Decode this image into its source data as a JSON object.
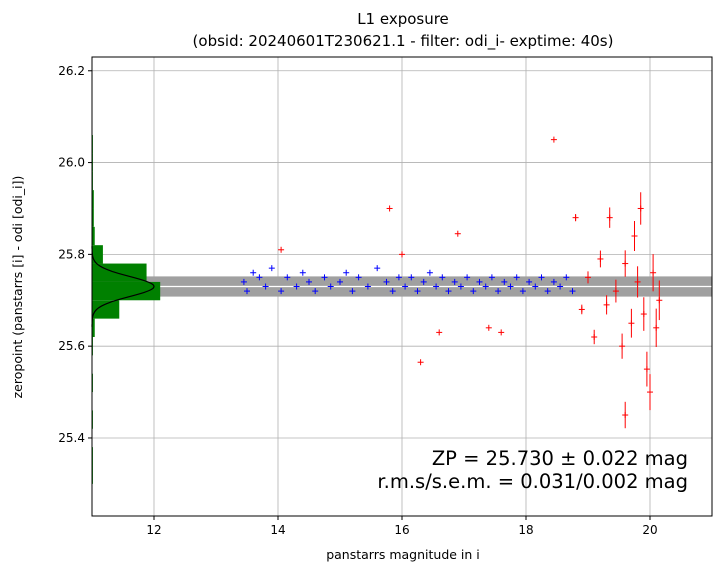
{
  "chart_data": {
    "type": "scatter",
    "title": "L1 exposure",
    "subtitle": "(obsid: 20240601T230621.1 - filter: odi_i- exptime: 40s)",
    "xlabel": "panstarrs magnitude in i",
    "ylabel": "zeropoint (panstarrs [i] - odi [odi_i])",
    "xlim": [
      11.0,
      21.0
    ],
    "ylim": [
      25.23,
      26.23
    ],
    "xticks": [
      12,
      14,
      16,
      18,
      20
    ],
    "yticks": [
      25.4,
      25.6,
      25.8,
      26.0,
      26.2
    ],
    "xtick_labels": [
      "12",
      "14",
      "16",
      "18",
      "20"
    ],
    "ytick_labels": [
      "25.4",
      "25.6",
      "25.8",
      "26.0",
      "26.2"
    ],
    "grid": true,
    "zeropoint": 25.73,
    "zeropoint_sigma": 0.022,
    "annotation_line1": "ZP = 25.730 ± 0.022 mag",
    "annotation_line2": "r.m.s/s.e.m. = 0.031/0.002 mag",
    "annotation_position": "bottom-right",
    "band_color": "#a0a0a0",
    "center_line_color": "#ffffff",
    "colors": {
      "used": "#0000ff",
      "rejected": "#ff0000",
      "histogram": "#008000",
      "gaussian": "#000000"
    },
    "series": [
      {
        "role": "used",
        "points": [
          [
            13.45,
            25.74
          ],
          [
            13.5,
            25.72
          ],
          [
            13.6,
            25.76
          ],
          [
            13.7,
            25.75
          ],
          [
            13.8,
            25.73
          ],
          [
            13.9,
            25.77
          ],
          [
            14.05,
            25.72
          ],
          [
            14.15,
            25.75
          ],
          [
            14.3,
            25.73
          ],
          [
            14.4,
            25.76
          ],
          [
            14.5,
            25.74
          ],
          [
            14.6,
            25.72
          ],
          [
            14.75,
            25.75
          ],
          [
            14.85,
            25.73
          ],
          [
            15.0,
            25.74
          ],
          [
            15.1,
            25.76
          ],
          [
            15.2,
            25.72
          ],
          [
            15.3,
            25.75
          ],
          [
            15.45,
            25.73
          ],
          [
            15.6,
            25.77
          ],
          [
            15.75,
            25.74
          ],
          [
            15.85,
            25.72
          ],
          [
            15.95,
            25.75
          ],
          [
            16.05,
            25.73
          ],
          [
            16.15,
            25.75
          ],
          [
            16.25,
            25.72
          ],
          [
            16.35,
            25.74
          ],
          [
            16.45,
            25.76
          ],
          [
            16.55,
            25.73
          ],
          [
            16.65,
            25.75
          ],
          [
            16.75,
            25.72
          ],
          [
            16.85,
            25.74
          ],
          [
            16.95,
            25.73
          ],
          [
            17.05,
            25.75
          ],
          [
            17.15,
            25.72
          ],
          [
            17.25,
            25.74
          ],
          [
            17.35,
            25.73
          ],
          [
            17.45,
            25.75
          ],
          [
            17.55,
            25.72
          ],
          [
            17.65,
            25.74
          ],
          [
            17.75,
            25.73
          ],
          [
            17.85,
            25.75
          ],
          [
            17.95,
            25.72
          ],
          [
            18.05,
            25.74
          ],
          [
            18.15,
            25.73
          ],
          [
            18.25,
            25.75
          ],
          [
            18.35,
            25.72
          ],
          [
            18.45,
            25.74
          ],
          [
            18.55,
            25.73
          ],
          [
            18.65,
            25.75
          ],
          [
            18.75,
            25.72
          ]
        ]
      },
      {
        "role": "rejected",
        "points": [
          [
            14.05,
            25.81
          ],
          [
            15.8,
            25.9
          ],
          [
            16.0,
            25.8
          ],
          [
            16.3,
            25.565
          ],
          [
            16.6,
            25.63
          ],
          [
            16.9,
            25.845
          ],
          [
            17.4,
            25.64
          ],
          [
            17.6,
            25.63
          ],
          [
            18.45,
            26.05
          ],
          [
            18.8,
            25.88
          ],
          [
            18.9,
            25.68
          ],
          [
            19.0,
            25.75
          ],
          [
            19.1,
            25.62
          ],
          [
            19.2,
            25.79
          ],
          [
            19.3,
            25.69
          ],
          [
            19.35,
            25.88
          ],
          [
            19.45,
            25.72
          ],
          [
            19.55,
            25.6
          ],
          [
            19.6,
            25.78
          ],
          [
            19.7,
            25.65
          ],
          [
            19.8,
            25.74
          ],
          [
            19.85,
            25.9
          ],
          [
            19.9,
            25.67
          ],
          [
            19.95,
            25.55
          ],
          [
            20.05,
            25.76
          ],
          [
            20.0,
            25.5
          ],
          [
            20.1,
            25.64
          ],
          [
            19.6,
            25.45
          ],
          [
            19.75,
            25.84
          ],
          [
            20.15,
            25.7
          ]
        ]
      }
    ],
    "histogram": {
      "bins": [
        25.3,
        25.34,
        25.38,
        25.42,
        25.46,
        25.5,
        25.54,
        25.58,
        25.62,
        25.66,
        25.7,
        25.74,
        25.78,
        25.82,
        25.86,
        25.9,
        25.94,
        25.98,
        26.02,
        26.06
      ],
      "counts": [
        1,
        1,
        0,
        1,
        0,
        1,
        0,
        1,
        3,
        30,
        75,
        60,
        12,
        3,
        2,
        2,
        1,
        1,
        1,
        0
      ]
    }
  }
}
